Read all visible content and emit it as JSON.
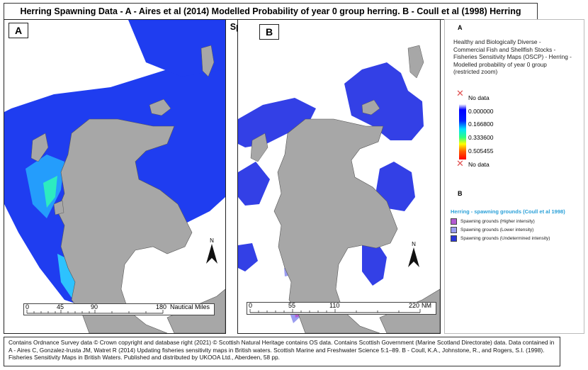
{
  "title": "Herring Spawning Data - A - Aires et al (2014) Modelled Probability of year 0 group herring. B - Coull et al (1998) Herring Spawning Grounds",
  "panel_a": {
    "letter": "A",
    "scale": {
      "ticks": [
        "0",
        "45",
        "90",
        "180"
      ],
      "unit": "Nautical Miles"
    },
    "north": "N"
  },
  "panel_b": {
    "letter": "B",
    "scale": {
      "ticks": [
        "0",
        "55",
        "110",
        "220"
      ],
      "unit": "NM"
    },
    "north": "N"
  },
  "legend": {
    "a_header": "A",
    "a_description": "Healthy and Biologically Diverse - Commercial Fish and Shellfish Stocks - Fisheries Sensitivity Maps (OSCP) - Herring - Modelled probability of year 0 group (restricted zoom)",
    "no_data_top": "No data",
    "ramp_labels": [
      "0.000000",
      "0.166800",
      "0.333600",
      "0.505455"
    ],
    "no_data_bottom": "No data",
    "b_header": "B",
    "b_title": "Herring - spawning grounds (Coull et al 1998)",
    "b_items": [
      {
        "label": "Spawning grounds (Higher intensity)",
        "color": "#b45ad2"
      },
      {
        "label": "Spawning grounds (Lower intensity)",
        "color": "#9a9cf0"
      },
      {
        "label": "Spawning grounds (Undetermined intensity)",
        "color": "#2a36d8"
      }
    ]
  },
  "colors": {
    "sea_model": "#1f3df0",
    "land": "#a7a7a7",
    "spawn_blue": "#3340e6"
  },
  "footer": "Contains Ordnance Survey data © Crown copyright and database right (2021) © Scottish Natural Heritage contains OS data. Contains Scottish Government (Marine Scotland Directorate) data. Data contained in A - Aires C, Gonzalez-Irusta JM, Watret R (2014) Updating fisheries sensitivity maps in British waters. Scottish Marine and Freshwater Science 5:1–89. B - Coull, K.A., Johnstone, R., and Rogers, S.I. (1998). Fisheries Sensitivity Maps in British Waters. Published and distributed by UKOOA Ltd., Aberdeen, 58 pp."
}
